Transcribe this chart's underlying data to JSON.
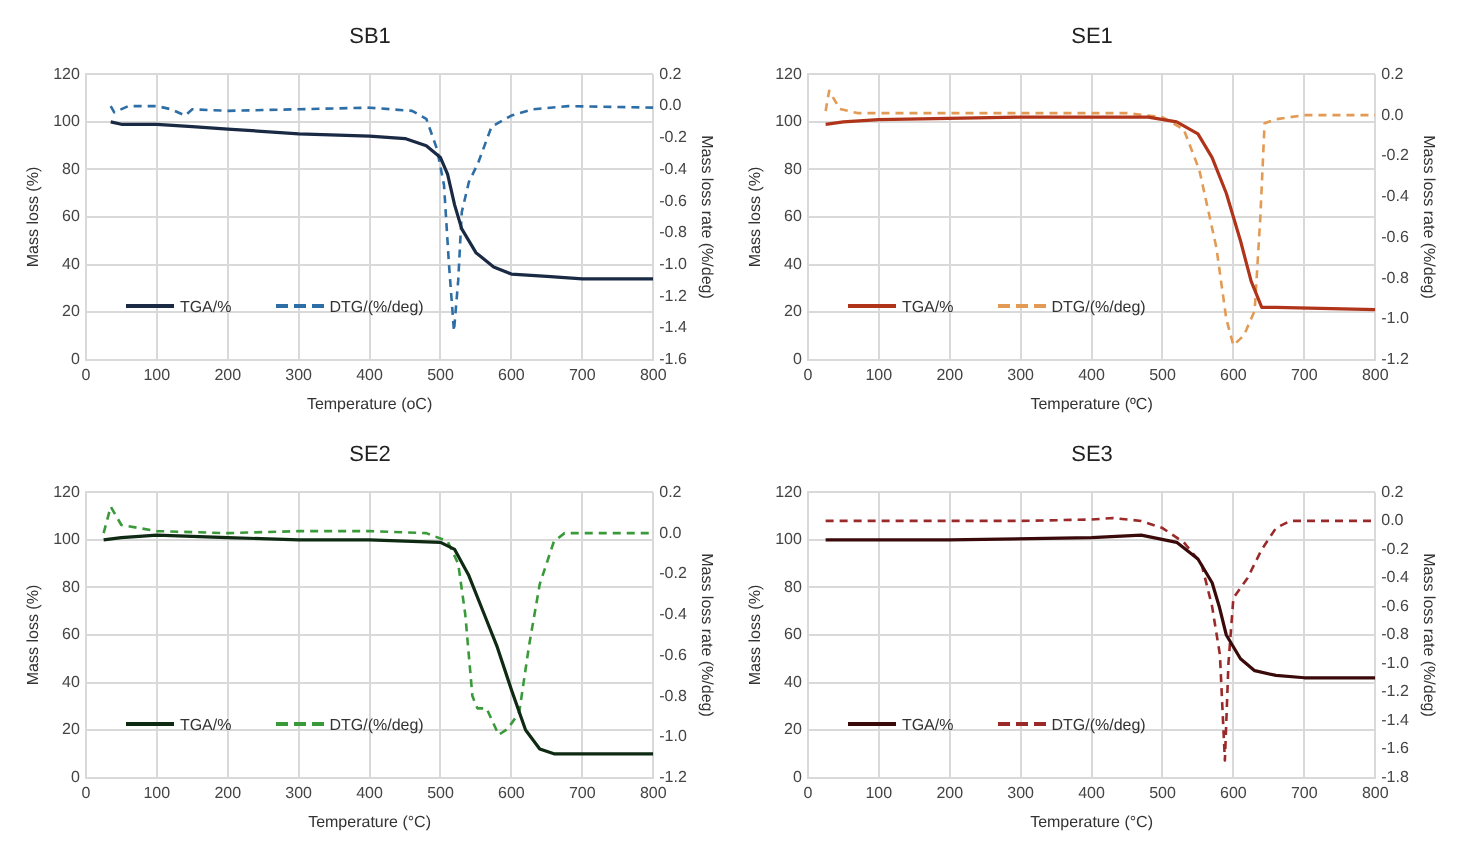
{
  "chart_data": [
    {
      "type": "line",
      "title": "SB1",
      "xlabel": "Temperature (oC)",
      "ylabel": "Mass loss (%)",
      "y2label": "Mass loss rate (%/deg)",
      "xlim": [
        0,
        800
      ],
      "xticks": [
        0,
        100,
        200,
        300,
        400,
        500,
        600,
        700,
        800
      ],
      "ylim": [
        0,
        120
      ],
      "yticks": [
        0,
        20,
        40,
        60,
        80,
        100,
        120
      ],
      "y2lim": [
        -1.6,
        0.2
      ],
      "y2ticks": [
        {
          "value": -1.6,
          "label": "-1.6"
        },
        {
          "value": -1.4,
          "label": "-1.4"
        },
        {
          "value": -1.2,
          "label": "-1.2"
        },
        {
          "value": -1.0,
          "label": "-1.0"
        },
        {
          "value": -0.8,
          "label": "-0.8"
        },
        {
          "value": -0.6,
          "label": "-0.6"
        },
        {
          "value": -0.4,
          "label": "-0.4"
        },
        {
          "value": -0.2,
          "label": "-0.2"
        },
        {
          "value": 0,
          "label": "0.0"
        },
        {
          "value": 0.2,
          "label": "0.2"
        }
      ],
      "grid": true,
      "legend": "bottom left",
      "marker": "none",
      "series": [
        {
          "name": "TGA/%",
          "color": "#1a2a44",
          "line_style": "solid",
          "x": [
            35,
            50,
            100,
            150,
            200,
            300,
            400,
            450,
            480,
            500,
            510,
            520,
            530,
            550,
            575,
            600,
            650,
            700,
            800
          ],
          "values": [
            100,
            99,
            99,
            98,
            97,
            95,
            94,
            93,
            90,
            85,
            78,
            65,
            55,
            45,
            39,
            36,
            35,
            34,
            34
          ]
        },
        {
          "name": "DTG/(%/deg)",
          "color": "#2e6ea6",
          "line_style": "dashed",
          "axis": "y2",
          "x": [
            35,
            40,
            60,
            100,
            120,
            140,
            150,
            200,
            300,
            400,
            460,
            480,
            495,
            505,
            512,
            519,
            525,
            530,
            540,
            553,
            572,
            600,
            630,
            680,
            800
          ],
          "values": [
            0,
            -0.04,
            0,
            0,
            -0.02,
            -0.06,
            -0.02,
            -0.03,
            -0.02,
            -0.01,
            -0.03,
            -0.08,
            -0.27,
            -0.5,
            -1.0,
            -1.42,
            -1.1,
            -0.67,
            -0.48,
            -0.36,
            -0.13,
            -0.06,
            -0.02,
            0,
            -0.01
          ]
        }
      ]
    },
    {
      "type": "line",
      "title": "SE1",
      "xlabel": "Temperature (ºC)",
      "ylabel": "Mass loss (%)",
      "y2label": "Mass loss rate (%/deg)",
      "xlim": [
        0,
        800
      ],
      "xticks": [
        0,
        100,
        200,
        300,
        400,
        500,
        600,
        700,
        800
      ],
      "ylim": [
        0,
        120
      ],
      "yticks": [
        0,
        20,
        40,
        60,
        80,
        100,
        120
      ],
      "y2lim": [
        -1.2,
        0.2
      ],
      "y2ticks": [
        {
          "value": -1.2,
          "label": "-1.2"
        },
        {
          "value": -1.0,
          "label": "-1.0"
        },
        {
          "value": -0.8,
          "label": "-0.8"
        },
        {
          "value": -0.6,
          "label": "-0.6"
        },
        {
          "value": -0.4,
          "label": "-0.4"
        },
        {
          "value": -0.2,
          "label": "-0.2"
        },
        {
          "value": 0,
          "label": "0.0"
        },
        {
          "value": 0.2,
          "label": "0.2"
        }
      ],
      "grid": true,
      "legend": "bottom left",
      "marker": "none",
      "series": [
        {
          "name": "TGA/%",
          "color": "#b0341a",
          "line_style": "solid",
          "x": [
            25,
            50,
            100,
            300,
            480,
            520,
            550,
            570,
            590,
            610,
            625,
            640,
            660,
            800
          ],
          "values": [
            99,
            100,
            101,
            102,
            102,
            100,
            95,
            85,
            70,
            50,
            33,
            22,
            22,
            21
          ]
        },
        {
          "name": "DTG/(%/deg)",
          "color": "#e39a55",
          "line_style": "dashed",
          "axis": "y2",
          "x": [
            25,
            30,
            45,
            70,
            200,
            450,
            500,
            530,
            552,
            576,
            590,
            600,
            615,
            630,
            638,
            644,
            660,
            700,
            800
          ],
          "values": [
            0.02,
            0.12,
            0.03,
            0.01,
            0.01,
            0.01,
            -0.01,
            -0.07,
            -0.27,
            -0.65,
            -1.0,
            -1.13,
            -1.08,
            -0.96,
            -0.5,
            -0.04,
            -0.02,
            0,
            0
          ]
        }
      ]
    },
    {
      "type": "line",
      "title": "SE2",
      "xlabel": "Temperature (°C)",
      "ylabel": "Mass loss (%)",
      "y2label": "Mass loss rate (%/deg)",
      "xlim": [
        0,
        800
      ],
      "xticks": [
        0,
        100,
        200,
        300,
        400,
        500,
        600,
        700,
        800
      ],
      "ylim": [
        0,
        120
      ],
      "yticks": [
        0,
        20,
        40,
        60,
        80,
        100,
        120
      ],
      "y2lim": [
        -1.2,
        0.2
      ],
      "y2ticks": [
        {
          "value": -1.2,
          "label": "-1.2"
        },
        {
          "value": -1.0,
          "label": "-1.0"
        },
        {
          "value": -0.8,
          "label": "-0.8"
        },
        {
          "value": -0.6,
          "label": "-0.6"
        },
        {
          "value": -0.4,
          "label": "-0.4"
        },
        {
          "value": -0.2,
          "label": "-0.2"
        },
        {
          "value": 0,
          "label": "0.0"
        },
        {
          "value": 0.2,
          "label": "0.2"
        }
      ],
      "grid": true,
      "legend": "bottom left",
      "marker": "none",
      "series": [
        {
          "name": "TGA/%",
          "color": "#0f2a12",
          "line_style": "solid",
          "x": [
            25,
            50,
            100,
            200,
            300,
            400,
            500,
            520,
            540,
            560,
            580,
            600,
            620,
            640,
            660,
            800
          ],
          "values": [
            100,
            101,
            102,
            101,
            100,
            100,
            99,
            96,
            85,
            70,
            55,
            37,
            20,
            12,
            10,
            10
          ]
        },
        {
          "name": "DTG/(%/deg)",
          "color": "#3a9a3a",
          "line_style": "dashed",
          "axis": "y2",
          "x": [
            25,
            35,
            50,
            100,
            200,
            300,
            400,
            480,
            510,
            525,
            535,
            545,
            552,
            565,
            582,
            595,
            611,
            625,
            640,
            660,
            675,
            800
          ],
          "values": [
            0,
            0.13,
            0.04,
            0.01,
            0,
            0.01,
            0.01,
            0,
            -0.04,
            -0.15,
            -0.4,
            -0.8,
            -0.86,
            -0.86,
            -0.99,
            -0.96,
            -0.88,
            -0.55,
            -0.25,
            -0.04,
            0,
            0
          ]
        }
      ]
    },
    {
      "type": "line",
      "title": "SE3",
      "xlabel": "Temperature (°C)",
      "ylabel": "Mass loss (%)",
      "y2label": "Mass loss rate (%/deg)",
      "xlim": [
        0,
        800
      ],
      "xticks": [
        0,
        100,
        200,
        300,
        400,
        500,
        600,
        700,
        800
      ],
      "ylim": [
        0,
        120
      ],
      "yticks": [
        0,
        20,
        40,
        60,
        80,
        100,
        120
      ],
      "y2lim": [
        -1.8,
        0.2
      ],
      "y2ticks": [
        {
          "value": -1.8,
          "label": "-1.8"
        },
        {
          "value": -1.6,
          "label": "-1.6"
        },
        {
          "value": -1.4,
          "label": "-1.4"
        },
        {
          "value": -1.2,
          "label": "-1.2"
        },
        {
          "value": -1.0,
          "label": "-1.0"
        },
        {
          "value": -0.8,
          "label": "-0.8"
        },
        {
          "value": -0.6,
          "label": "-0.6"
        },
        {
          "value": -0.4,
          "label": "-0.4"
        },
        {
          "value": -0.2,
          "label": "-0.2"
        },
        {
          "value": 0,
          "label": "0.0"
        },
        {
          "value": 0.2,
          "label": "0.2"
        }
      ],
      "grid": true,
      "legend": "bottom left",
      "marker": "none",
      "series": [
        {
          "name": "TGA/%",
          "color": "#3a0a0a",
          "line_style": "solid",
          "x": [
            25,
            200,
            400,
            470,
            520,
            550,
            570,
            580,
            590,
            610,
            630,
            660,
            700,
            800
          ],
          "values": [
            100,
            100,
            101,
            102,
            99,
            92,
            82,
            72,
            60,
            50,
            45,
            43,
            42,
            42
          ]
        },
        {
          "name": "DTG/(%/deg)",
          "color": "#9a2a2a",
          "line_style": "dashed",
          "axis": "y2",
          "x": [
            25,
            100,
            300,
            400,
            430,
            470,
            500,
            530,
            555,
            570,
            581,
            588,
            593,
            600,
            620,
            640,
            660,
            680,
            800
          ],
          "values": [
            0,
            0,
            0,
            0.01,
            0.02,
            0,
            -0.05,
            -0.15,
            -0.3,
            -0.6,
            -0.94,
            -1.68,
            -1.0,
            -0.54,
            -0.4,
            -0.2,
            -0.05,
            0,
            0
          ]
        }
      ]
    }
  ]
}
